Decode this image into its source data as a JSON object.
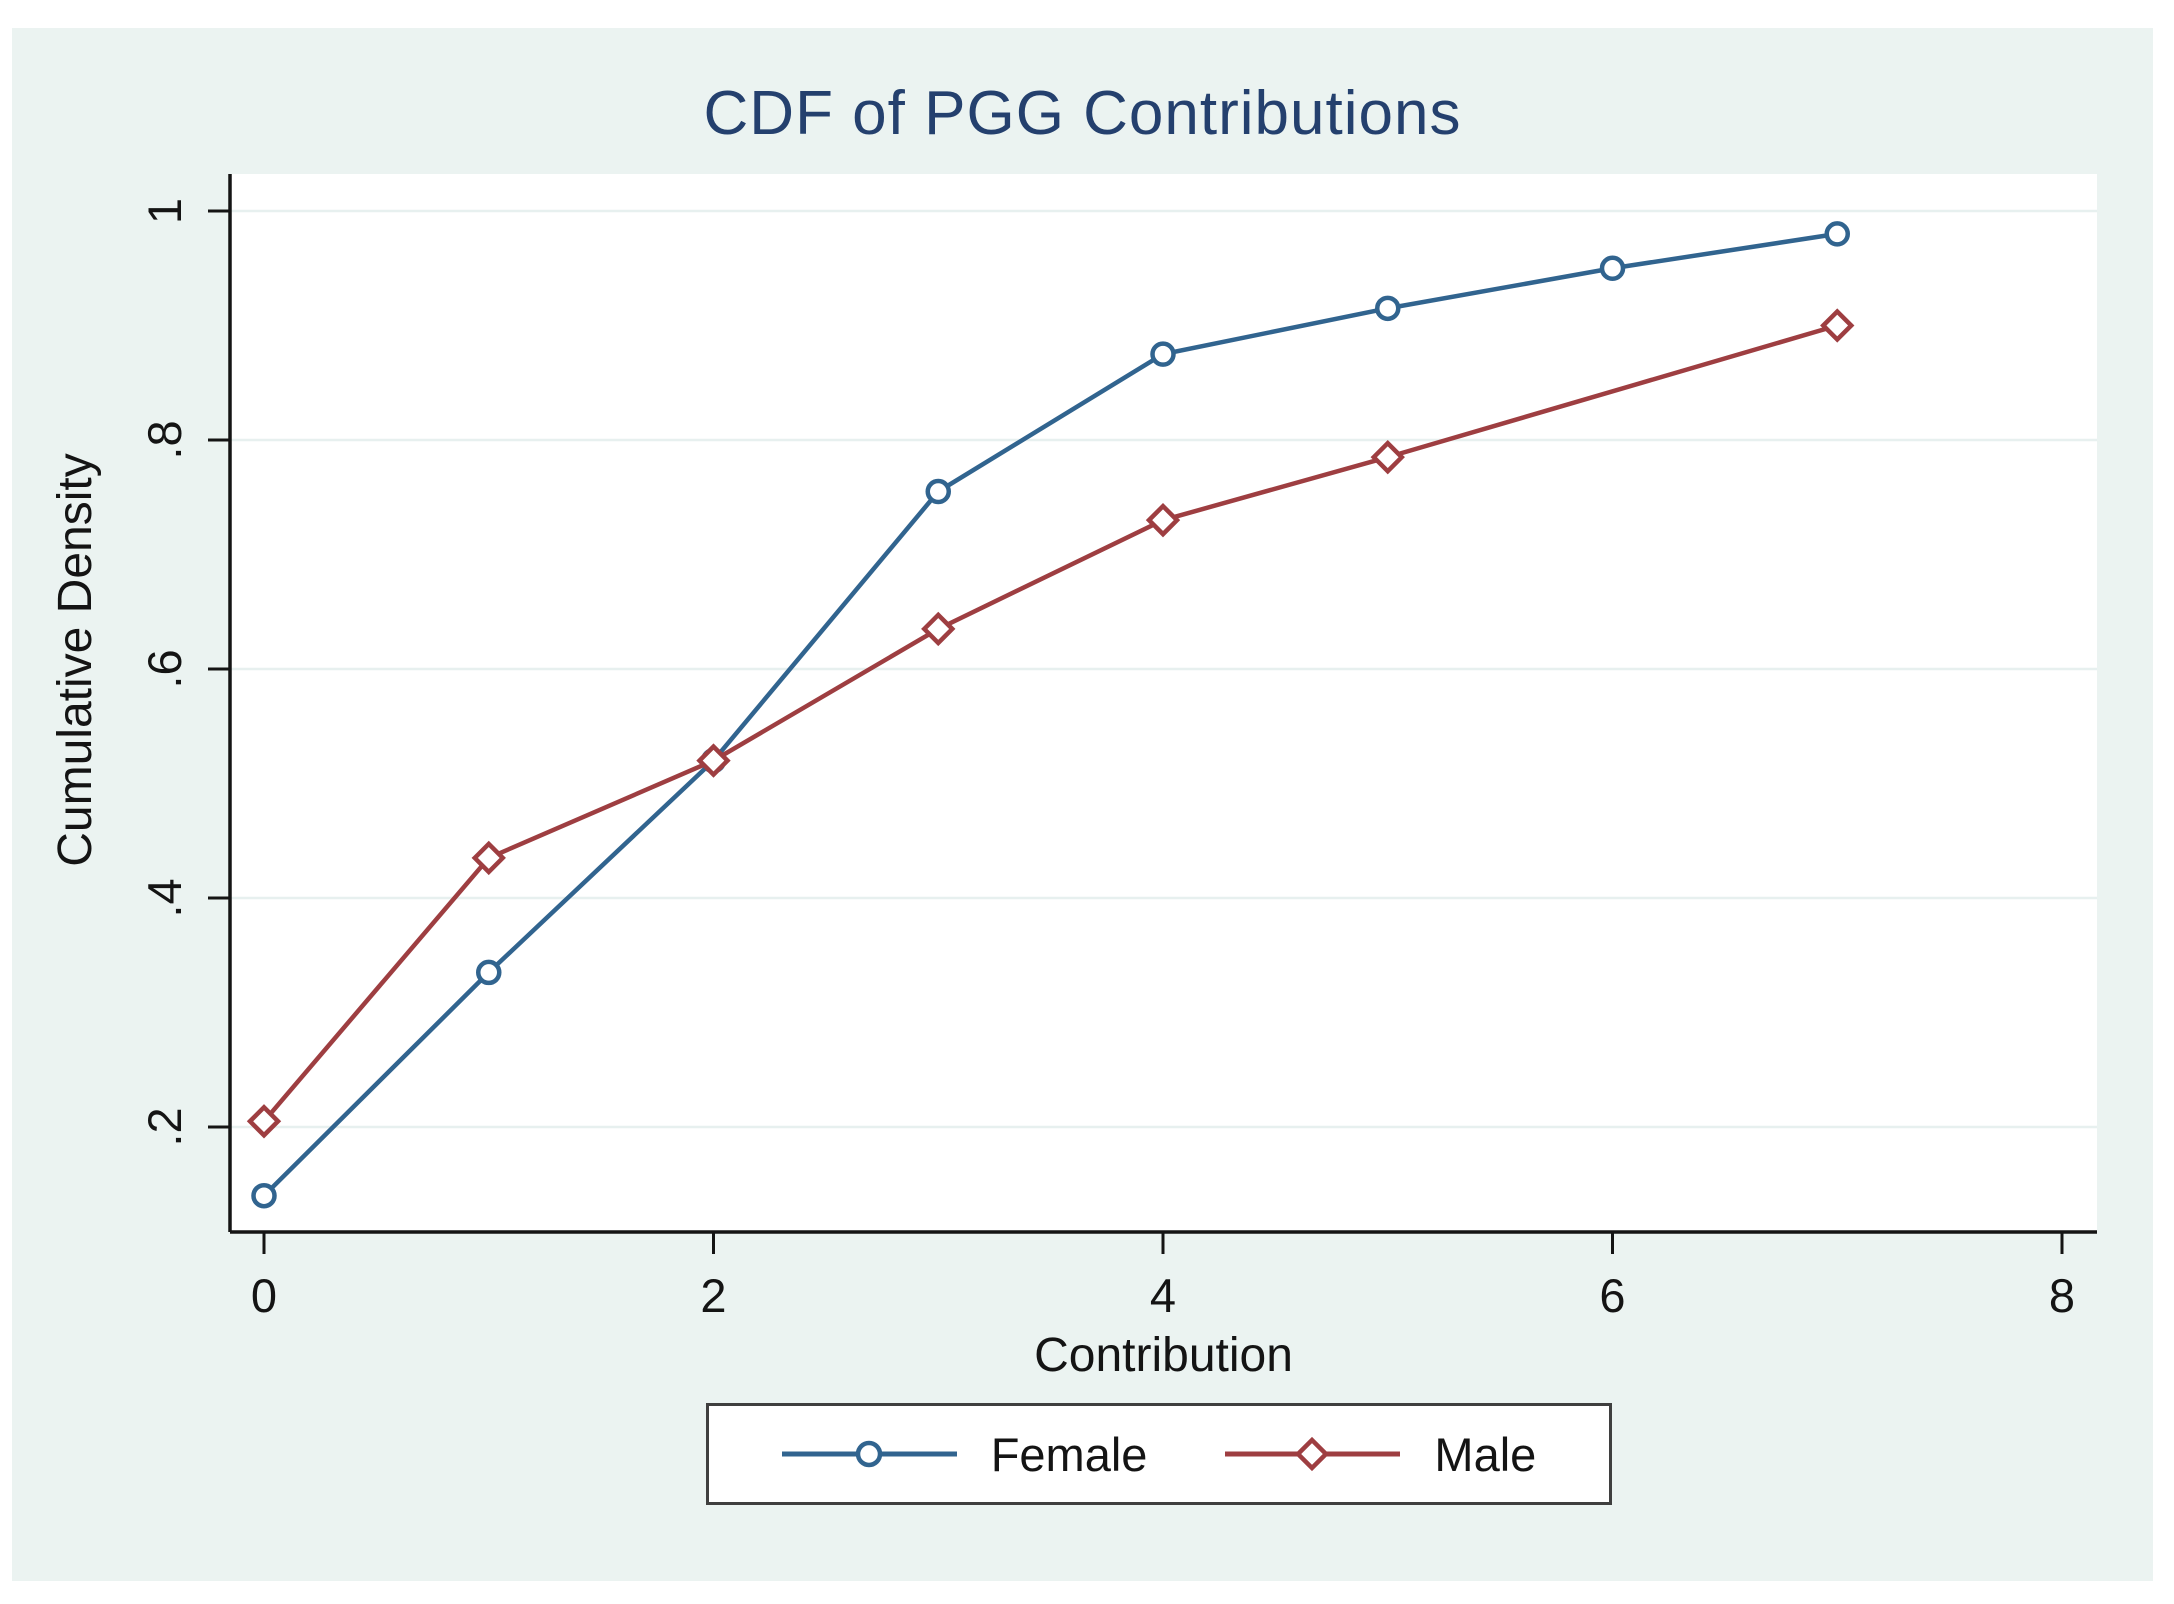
{
  "title": "CDF of PGG Contributions",
  "axes": {
    "x_label": "Contribution",
    "y_label": "Cumulative Density",
    "x_ticks": [
      {
        "label": "0",
        "value": 0
      },
      {
        "label": "2",
        "value": 2
      },
      {
        "label": "4",
        "value": 4
      },
      {
        "label": "6",
        "value": 6
      },
      {
        "label": "8",
        "value": 8
      }
    ],
    "y_ticks": [
      {
        "label": "1",
        "value": 1
      },
      {
        "label": ".8",
        "value": 0.8
      },
      {
        "label": ".6",
        "value": 0.6
      },
      {
        "label": ".4",
        "value": 0.4
      },
      {
        "label": ".2",
        "value": 0.2
      }
    ]
  },
  "legend": {
    "items": [
      {
        "label": "Female",
        "marker": "circle",
        "color": "#31648f"
      },
      {
        "label": "Male",
        "marker": "diamond",
        "color": "#9e3e41"
      }
    ]
  },
  "colors": {
    "background": "#ebf3f1",
    "plot_background": "#ffffff",
    "gridline": "#e7f0ef",
    "axis": "#141414",
    "title": "#24406e",
    "female": "#31648f",
    "male": "#9e3e41",
    "legend_border": "#3f3f3f"
  },
  "chart_data": {
    "type": "line",
    "title": "CDF of PGG Contributions",
    "xlabel": "Contribution",
    "ylabel": "Cumulative Density",
    "xlim": [
      0,
      8
    ],
    "ylim": [
      0.1,
      1.03
    ],
    "x_tick_values": [
      0,
      2,
      4,
      6,
      8
    ],
    "y_tick_values": [
      0.2,
      0.4,
      0.6,
      0.8,
      1
    ],
    "grid": "horizontal gridlines at y ticks only",
    "legend_position": "bottom center, boxed",
    "series": [
      {
        "name": "Female",
        "marker": "circle",
        "color": "#31648f",
        "x": [
          0,
          1,
          2,
          3,
          4,
          5,
          6,
          7
        ],
        "y": [
          0.14,
          0.335,
          0.52,
          0.755,
          0.875,
          0.915,
          0.95,
          0.98
        ]
      },
      {
        "name": "Male",
        "marker": "diamond",
        "color": "#9e3e41",
        "x": [
          0,
          1,
          2,
          3,
          4,
          5,
          7
        ],
        "y": [
          0.205,
          0.435,
          0.52,
          0.635,
          0.73,
          0.785,
          0.9
        ]
      }
    ]
  }
}
